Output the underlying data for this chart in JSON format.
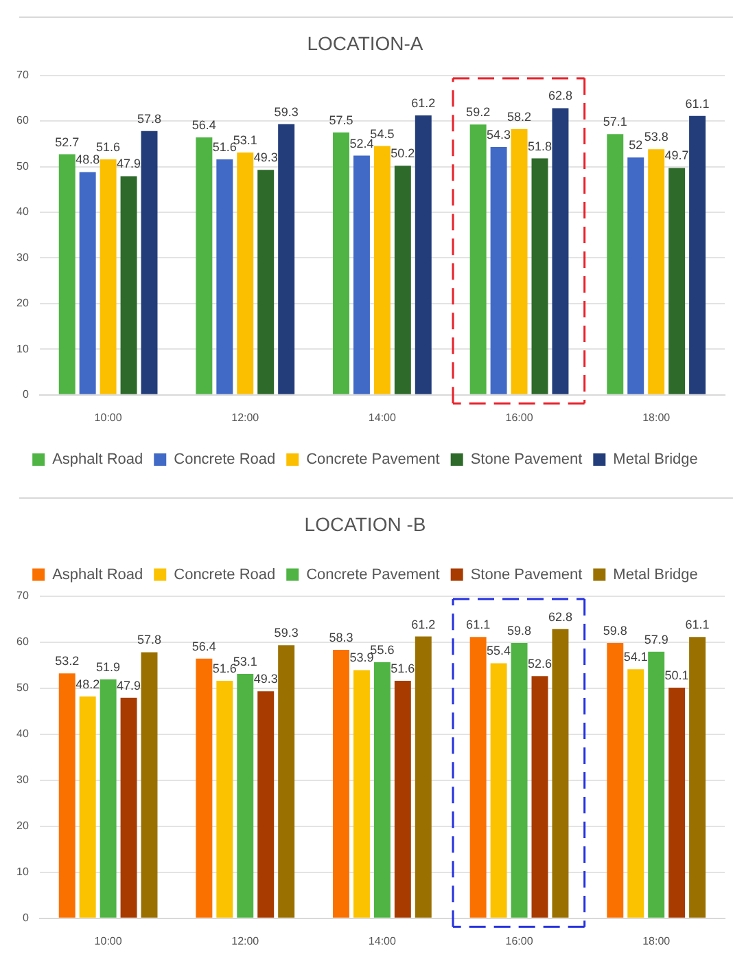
{
  "chart_data": [
    {
      "type": "bar",
      "title": "LOCATION-A",
      "categories": [
        "10:00",
        "12:00",
        "14:00",
        "16:00",
        "18:00"
      ],
      "series": [
        {
          "name": "Asphalt Road",
          "color": "#4fb444",
          "values": [
            52.7,
            56.4,
            57.5,
            59.2,
            57.1
          ]
        },
        {
          "name": "Concrete Road",
          "color": "#4169c6",
          "values": [
            48.8,
            51.6,
            52.4,
            54.3,
            52
          ]
        },
        {
          "name": "Concrete Pavement",
          "color": "#fbbf00",
          "values": [
            51.6,
            53.1,
            54.5,
            58.2,
            53.8
          ]
        },
        {
          "name": "Stone Pavement",
          "color": "#2e6a2a",
          "values": [
            47.9,
            49.3,
            50.2,
            51.8,
            49.7
          ]
        },
        {
          "name": "Metal Bridge",
          "color": "#233d7a",
          "values": [
            57.8,
            59.3,
            61.2,
            62.8,
            61.1
          ]
        }
      ],
      "ylim": [
        0,
        70
      ],
      "yticks": [
        0,
        10,
        20,
        30,
        40,
        50,
        60,
        70
      ],
      "grid": "y",
      "legend": "bottom",
      "data_labels": true
    },
    {
      "type": "bar",
      "title": "LOCATION -B",
      "categories": [
        "10:00",
        "12:00",
        "14:00",
        "16:00",
        "18:00"
      ],
      "series": [
        {
          "name": "Asphalt Road",
          "color": "#fb7100",
          "values": [
            53.2,
            56.4,
            58.3,
            61.1,
            59.8
          ]
        },
        {
          "name": "Concrete Road",
          "color": "#fbc200",
          "values": [
            48.2,
            51.6,
            53.9,
            55.4,
            54.1
          ]
        },
        {
          "name": "Concrete Pavement",
          "color": "#4fb444",
          "values": [
            51.9,
            53.1,
            55.6,
            59.8,
            57.9
          ]
        },
        {
          "name": "Stone Pavement",
          "color": "#a83c00",
          "values": [
            47.9,
            49.3,
            51.6,
            52.6,
            50.1
          ]
        },
        {
          "name": "Metal Bridge",
          "color": "#9a7100",
          "values": [
            57.8,
            59.3,
            61.2,
            62.8,
            61.1
          ]
        }
      ],
      "ylim": [
        0,
        70
      ],
      "yticks": [
        0,
        10,
        20,
        30,
        40,
        50,
        60,
        70
      ],
      "grid": "y",
      "legend": "top",
      "data_labels": true
    }
  ]
}
